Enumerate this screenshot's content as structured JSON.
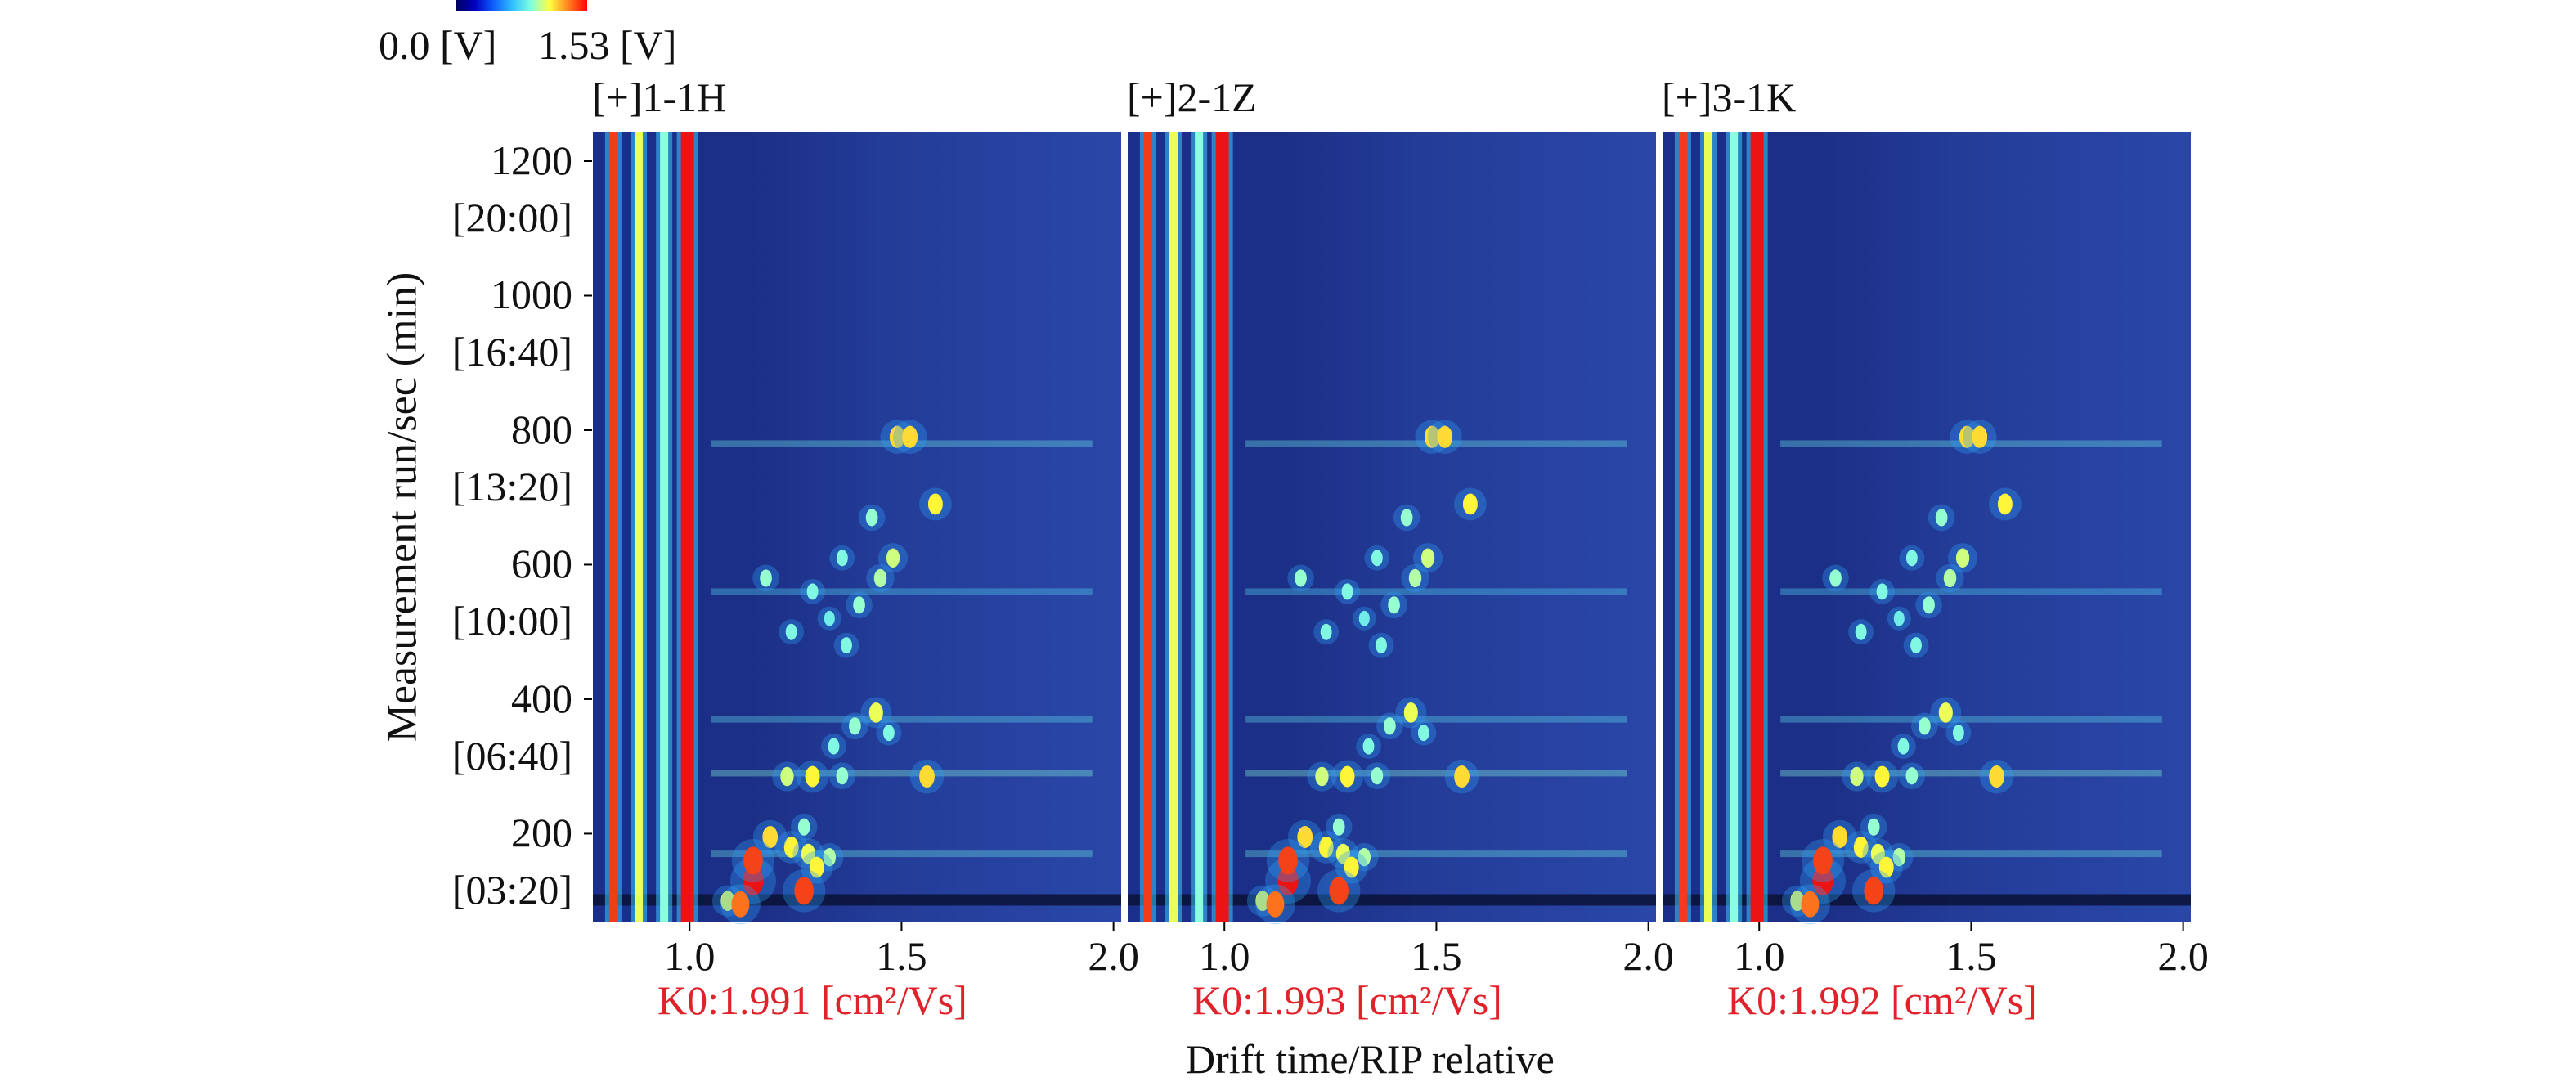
{
  "chart_data": {
    "type": "heatmap",
    "colorbar": {
      "min_label": "0.0 [V]",
      "max_label": "1.53 [V]",
      "colors": [
        "#000060",
        "#0000c0",
        "#1060ff",
        "#30c0ff",
        "#80ffe0",
        "#ffff40",
        "#ff8020",
        "#ff0000"
      ]
    },
    "ylabel": "Measurement run/sec (min)",
    "xlabel": "Drift time/RIP relative",
    "xlim": [
      0.77,
      2.02
    ],
    "ylim": [
      68,
      1245
    ],
    "xticks": [
      {
        "value": 1.0,
        "label": "1.0"
      },
      {
        "value": 1.5,
        "label": "1.5"
      },
      {
        "value": 2.0,
        "label": "2.0"
      }
    ],
    "yticks": [
      {
        "value": 1200,
        "label": "1200",
        "time": "[20:00]"
      },
      {
        "value": 1000,
        "label": "1000",
        "time": "[16:40]"
      },
      {
        "value": 800,
        "label": "800",
        "time": "[13:20]"
      },
      {
        "value": 600,
        "label": "600",
        "time": "[10:00]"
      },
      {
        "value": 400,
        "label": "400",
        "time": "[06:40]"
      },
      {
        "value": 200,
        "label": "200",
        "time": "[03:20]"
      }
    ],
    "panels": [
      {
        "title": "[+]1-1H",
        "k0": "K0:1.991 [cm²/Vs]"
      },
      {
        "title": "[+]2-1Z",
        "k0": "K0:1.993 [cm²/Vs]"
      },
      {
        "title": "[+]3-1K",
        "k0": "K0:1.992 [cm²/Vs]"
      }
    ],
    "vertical_bands": [
      {
        "x": 0.82,
        "intensity": 0.95
      },
      {
        "x": 0.88,
        "intensity": 0.7
      },
      {
        "x": 0.94,
        "intensity": 0.6
      },
      {
        "x": 0.995,
        "intensity": 1.0
      }
    ],
    "horizontal_streaks": [
      {
        "y": 780,
        "intensity": 0.25
      },
      {
        "y": 560,
        "intensity": 0.2
      },
      {
        "y": 370,
        "intensity": 0.22
      },
      {
        "y": 290,
        "intensity": 0.3
      },
      {
        "y": 170,
        "intensity": 0.25
      }
    ],
    "peaks": [
      {
        "x": 1.49,
        "y": 790,
        "intensity": 0.6
      },
      {
        "x": 1.52,
        "y": 790,
        "intensity": 0.6
      },
      {
        "x": 1.58,
        "y": 690,
        "intensity": 0.55
      },
      {
        "x": 1.43,
        "y": 670,
        "intensity": 0.35
      },
      {
        "x": 1.48,
        "y": 610,
        "intensity": 0.45
      },
      {
        "x": 1.45,
        "y": 580,
        "intensity": 0.4
      },
      {
        "x": 1.36,
        "y": 610,
        "intensity": 0.3
      },
      {
        "x": 1.18,
        "y": 580,
        "intensity": 0.35
      },
      {
        "x": 1.29,
        "y": 560,
        "intensity": 0.3
      },
      {
        "x": 1.4,
        "y": 540,
        "intensity": 0.35
      },
      {
        "x": 1.33,
        "y": 520,
        "intensity": 0.25
      },
      {
        "x": 1.24,
        "y": 500,
        "intensity": 0.3
      },
      {
        "x": 1.37,
        "y": 480,
        "intensity": 0.3
      },
      {
        "x": 1.44,
        "y": 380,
        "intensity": 0.5
      },
      {
        "x": 1.39,
        "y": 360,
        "intensity": 0.35
      },
      {
        "x": 1.47,
        "y": 350,
        "intensity": 0.3
      },
      {
        "x": 1.34,
        "y": 330,
        "intensity": 0.3
      },
      {
        "x": 1.29,
        "y": 285,
        "intensity": 0.55
      },
      {
        "x": 1.23,
        "y": 285,
        "intensity": 0.45
      },
      {
        "x": 1.56,
        "y": 285,
        "intensity": 0.6
      },
      {
        "x": 1.36,
        "y": 286,
        "intensity": 0.35
      },
      {
        "x": 1.27,
        "y": 210,
        "intensity": 0.35
      },
      {
        "x": 1.24,
        "y": 180,
        "intensity": 0.55
      },
      {
        "x": 1.28,
        "y": 170,
        "intensity": 0.5
      },
      {
        "x": 1.33,
        "y": 165,
        "intensity": 0.4
      },
      {
        "x": 1.3,
        "y": 150,
        "intensity": 0.55
      },
      {
        "x": 1.19,
        "y": 195,
        "intensity": 0.6
      },
      {
        "x": 1.15,
        "y": 130,
        "intensity": 1.0
      },
      {
        "x": 1.15,
        "y": 160,
        "intensity": 0.9
      },
      {
        "x": 1.09,
        "y": 100,
        "intensity": 0.5
      },
      {
        "x": 1.27,
        "y": 115,
        "intensity": 0.9
      },
      {
        "x": 1.12,
        "y": 95,
        "intensity": 0.8
      }
    ]
  }
}
